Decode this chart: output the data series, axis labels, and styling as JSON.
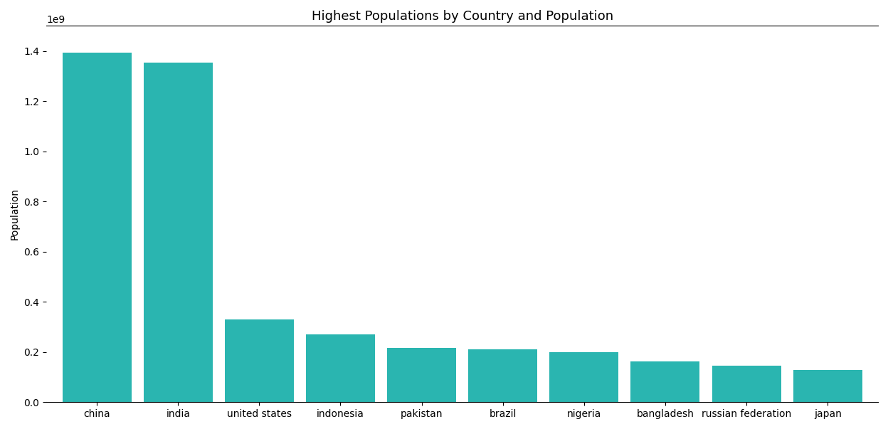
{
  "categories": [
    "china",
    "india",
    "united states",
    "indonesia",
    "pakistan",
    "brazil",
    "nigeria",
    "bangladesh",
    "russian federation",
    "japan"
  ],
  "values": [
    1393000000,
    1353000000,
    329000000,
    270000000,
    216000000,
    211000000,
    200000000,
    163000000,
    145000000,
    128000000
  ],
  "bar_color": "#2ab5b0",
  "title": "Highest Populations by Country and Population",
  "ylabel": "Population",
  "background_color": "#ffffff",
  "title_fontsize": 13,
  "ylim": [
    0,
    1500000000.0
  ],
  "bar_width": 0.85
}
